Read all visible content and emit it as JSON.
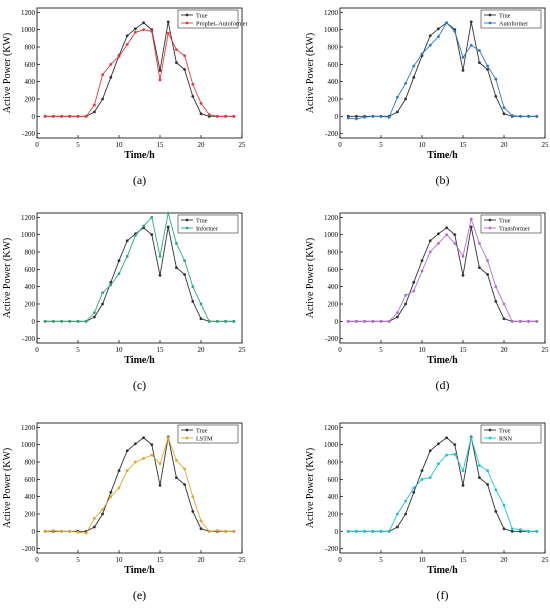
{
  "chart_data": [
    {
      "type": "line",
      "panel_label": "(a)",
      "xlabel": "Time/h",
      "ylabel": "Active Power (KW)",
      "xlim": [
        0,
        25
      ],
      "ylim": [
        -250,
        1250
      ],
      "xticks": [
        0,
        5,
        10,
        15,
        20,
        25
      ],
      "yticks": [
        -200,
        0,
        200,
        400,
        600,
        800,
        1000,
        1200
      ],
      "grid": false,
      "legend_position": "top-right",
      "x": [
        1,
        2,
        3,
        4,
        5,
        6,
        7,
        8,
        9,
        10,
        11,
        12,
        13,
        14,
        15,
        16,
        17,
        18,
        19,
        20,
        21,
        22,
        23,
        24
      ],
      "series": [
        {
          "name": "True",
          "color": "#333333",
          "values": [
            0,
            0,
            0,
            0,
            0,
            0,
            50,
            200,
            450,
            700,
            930,
            1010,
            1080,
            1000,
            530,
            1090,
            620,
            540,
            230,
            30,
            0,
            0,
            0,
            0
          ]
        },
        {
          "name": "Prophet–Autoformer",
          "color": "#e8383d",
          "values": [
            0,
            0,
            0,
            0,
            0,
            0,
            130,
            480,
            600,
            690,
            830,
            970,
            1000,
            980,
            420,
            960,
            770,
            700,
            370,
            150,
            20,
            0,
            0,
            0
          ]
        }
      ]
    },
    {
      "type": "line",
      "panel_label": "(b)",
      "xlabel": "Time/h",
      "ylabel": "Active Power (KW)",
      "xlim": [
        0,
        25
      ],
      "ylim": [
        -250,
        1250
      ],
      "xticks": [
        0,
        5,
        10,
        15,
        20,
        25
      ],
      "yticks": [
        -200,
        0,
        200,
        400,
        600,
        800,
        1000,
        1200
      ],
      "grid": false,
      "legend_position": "top-right",
      "x": [
        1,
        2,
        3,
        4,
        5,
        6,
        7,
        8,
        9,
        10,
        11,
        12,
        13,
        14,
        15,
        16,
        17,
        18,
        19,
        20,
        21,
        22,
        23,
        24
      ],
      "series": [
        {
          "name": "True",
          "color": "#333333",
          "values": [
            0,
            0,
            0,
            0,
            0,
            0,
            50,
            200,
            450,
            700,
            930,
            1010,
            1080,
            1000,
            530,
            1090,
            620,
            540,
            230,
            30,
            0,
            0,
            0,
            0
          ]
        },
        {
          "name": "Autoformer",
          "color": "#2e78c7",
          "values": [
            -20,
            -30,
            -10,
            0,
            0,
            -10,
            220,
            380,
            580,
            720,
            820,
            920,
            1080,
            980,
            680,
            820,
            760,
            580,
            430,
            100,
            10,
            0,
            0,
            0
          ]
        }
      ]
    },
    {
      "type": "line",
      "panel_label": "(c)",
      "xlabel": "Time/h",
      "ylabel": "Active Power (KW)",
      "xlim": [
        0,
        25
      ],
      "ylim": [
        -250,
        1250
      ],
      "xticks": [
        0,
        5,
        10,
        15,
        20,
        25
      ],
      "yticks": [
        -200,
        0,
        200,
        400,
        600,
        800,
        1000,
        1200
      ],
      "grid": false,
      "legend_position": "top-right",
      "x": [
        1,
        2,
        3,
        4,
        5,
        6,
        7,
        8,
        9,
        10,
        11,
        12,
        13,
        14,
        15,
        16,
        17,
        18,
        19,
        20,
        21,
        22,
        23,
        24
      ],
      "series": [
        {
          "name": "True",
          "color": "#333333",
          "values": [
            0,
            0,
            0,
            0,
            0,
            0,
            50,
            200,
            450,
            700,
            930,
            1010,
            1080,
            1000,
            530,
            1090,
            620,
            540,
            230,
            30,
            0,
            0,
            0,
            0
          ]
        },
        {
          "name": "Informer",
          "color": "#2fa87f",
          "values": [
            0,
            0,
            0,
            0,
            0,
            0,
            100,
            330,
            420,
            550,
            750,
            990,
            1100,
            1200,
            750,
            1250,
            900,
            700,
            400,
            200,
            0,
            0,
            0,
            0
          ]
        }
      ]
    },
    {
      "type": "line",
      "panel_label": "(d)",
      "xlabel": "Time/h",
      "ylabel": "Active Power (KW)",
      "xlim": [
        0,
        25
      ],
      "ylim": [
        -250,
        1250
      ],
      "xticks": [
        0,
        5,
        10,
        15,
        20,
        25
      ],
      "yticks": [
        -200,
        0,
        200,
        400,
        600,
        800,
        1000,
        1200
      ],
      "grid": false,
      "legend_position": "top-right",
      "x": [
        1,
        2,
        3,
        4,
        5,
        6,
        7,
        8,
        9,
        10,
        11,
        12,
        13,
        14,
        15,
        16,
        17,
        18,
        19,
        20,
        21,
        22,
        23,
        24
      ],
      "series": [
        {
          "name": "True",
          "color": "#333333",
          "values": [
            0,
            0,
            0,
            0,
            0,
            0,
            50,
            200,
            450,
            700,
            930,
            1010,
            1080,
            1000,
            530,
            1090,
            620,
            540,
            230,
            30,
            0,
            0,
            0,
            0
          ]
        },
        {
          "name": "Transformer",
          "color": "#b36fd6",
          "values": [
            0,
            0,
            0,
            0,
            0,
            0,
            100,
            300,
            350,
            580,
            800,
            900,
            1000,
            900,
            750,
            1180,
            900,
            700,
            400,
            200,
            0,
            0,
            0,
            0
          ]
        }
      ]
    },
    {
      "type": "line",
      "panel_label": "(e)",
      "xlabel": "Time/h",
      "ylabel": "Active Power (KW)",
      "xlim": [
        0,
        25
      ],
      "ylim": [
        -250,
        1250
      ],
      "xticks": [
        0,
        5,
        10,
        15,
        20,
        25
      ],
      "yticks": [
        -200,
        0,
        200,
        400,
        600,
        800,
        1000,
        1200
      ],
      "grid": false,
      "legend_position": "top-right",
      "x": [
        1,
        2,
        3,
        4,
        5,
        6,
        7,
        8,
        9,
        10,
        11,
        12,
        13,
        14,
        15,
        16,
        17,
        18,
        19,
        20,
        21,
        22,
        23,
        24
      ],
      "series": [
        {
          "name": "True",
          "color": "#333333",
          "values": [
            0,
            0,
            0,
            0,
            0,
            0,
            50,
            200,
            450,
            700,
            930,
            1010,
            1080,
            1000,
            530,
            1090,
            620,
            540,
            230,
            30,
            0,
            0,
            0,
            0
          ]
        },
        {
          "name": "LSTM",
          "color": "#e0a52a",
          "values": [
            0,
            10,
            0,
            0,
            -10,
            -20,
            150,
            250,
            400,
            500,
            700,
            800,
            840,
            880,
            780,
            1080,
            820,
            720,
            400,
            120,
            0,
            10,
            0,
            0
          ]
        }
      ]
    },
    {
      "type": "line",
      "panel_label": "(f)",
      "xlabel": "Time/h",
      "ylabel": "Active Power (KW)",
      "xlim": [
        0,
        25
      ],
      "ylim": [
        -250,
        1250
      ],
      "xticks": [
        0,
        5,
        10,
        15,
        20,
        25
      ],
      "yticks": [
        -200,
        0,
        200,
        400,
        600,
        800,
        1000,
        1200
      ],
      "grid": false,
      "legend_position": "top-right",
      "x": [
        1,
        2,
        3,
        4,
        5,
        6,
        7,
        8,
        9,
        10,
        11,
        12,
        13,
        14,
        15,
        16,
        17,
        18,
        19,
        20,
        21,
        22,
        23,
        24
      ],
      "series": [
        {
          "name": "True",
          "color": "#333333",
          "values": [
            0,
            0,
            0,
            0,
            0,
            0,
            50,
            200,
            450,
            700,
            930,
            1010,
            1080,
            1000,
            530,
            1090,
            620,
            540,
            230,
            30,
            0,
            0,
            0,
            0
          ]
        },
        {
          "name": "RNN",
          "color": "#1cc6d3",
          "values": [
            0,
            0,
            0,
            0,
            0,
            0,
            200,
            350,
            500,
            600,
            620,
            780,
            880,
            890,
            700,
            1080,
            760,
            700,
            480,
            300,
            30,
            20,
            0,
            0
          ]
        }
      ]
    }
  ]
}
